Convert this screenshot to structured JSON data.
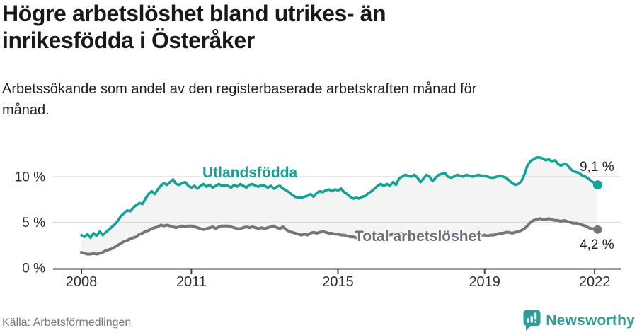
{
  "header": {
    "title_line1": "Högre arbetslöshet bland utrikes- än",
    "title_line2": "inrikesfödda i Österåker",
    "subtitle_line1": "Arbetssökande som andel av den registerbaserade arbetskraften månad för",
    "subtitle_line2": "månad."
  },
  "chart_data": {
    "type": "line",
    "title": "Högre arbetslöshet bland utrikes- än inrikesfödda i Österåker",
    "subtitle": "Arbetssökande som andel av den registerbaserade arbetskraften månad för månad.",
    "x_unit": "month",
    "x_start": "2008-01",
    "x_end": "2022-02",
    "x_tick_years": [
      2008,
      2011,
      2015,
      2019,
      2022
    ],
    "x_tick_labels": [
      "2008",
      "2011",
      "2015",
      "2019",
      "2022"
    ],
    "y_tick_values": [
      0,
      5,
      10
    ],
    "y_tick_labels": [
      "0 %",
      "5 %",
      "10 %"
    ],
    "y_grid_values": [
      5,
      10
    ],
    "ylim": [
      0,
      13.2
    ],
    "grid": "horizontal",
    "legend_position": "inline-labels",
    "band_fill": "#f4f4f4",
    "axis_color": "#3f3f3f",
    "grid_color": "#dadada",
    "series": [
      {
        "name": "Utlandsfödda",
        "color": "#14a294",
        "end_label": "9,1 %",
        "end_value": 9.1,
        "values": [
          3.6,
          3.4,
          3.7,
          3.3,
          3.8,
          3.5,
          4.0,
          3.6,
          3.9,
          4.2,
          4.5,
          4.8,
          5.2,
          5.7,
          6.0,
          6.3,
          6.2,
          6.6,
          6.9,
          7.1,
          7.0,
          7.6,
          8.1,
          8.4,
          8.1,
          8.6,
          9.0,
          9.3,
          9.1,
          9.4,
          9.7,
          9.2,
          9.1,
          9.3,
          9.4,
          9.0,
          8.8,
          9.0,
          8.7,
          9.0,
          9.2,
          8.9,
          9.1,
          8.8,
          9.0,
          9.2,
          9.0,
          9.1,
          9.0,
          8.8,
          9.1,
          8.9,
          9.2,
          9.0,
          8.8,
          9.1,
          9.2,
          9.0,
          8.9,
          9.1,
          9.0,
          8.8,
          9.0,
          8.7,
          8.9,
          9.0,
          8.7,
          8.5,
          8.3,
          8.0,
          7.8,
          7.7,
          7.7,
          7.8,
          7.9,
          8.1,
          7.8,
          8.2,
          8.4,
          8.3,
          8.5,
          8.6,
          8.4,
          8.6,
          8.5,
          8.7,
          8.3,
          8.1,
          7.8,
          7.6,
          7.7,
          7.6,
          7.8,
          7.9,
          8.2,
          8.4,
          8.7,
          9.0,
          9.2,
          9.0,
          9.2,
          9.0,
          9.4,
          9.1,
          9.8,
          10.0,
          10.2,
          10.1,
          10.0,
          10.2,
          9.9,
          9.4,
          9.8,
          10.2,
          10.0,
          9.5,
          9.9,
          10.2,
          10.3,
          10.4,
          10.0,
          9.9,
          10.0,
          10.2,
          10.1,
          10.0,
          10.2,
          10.1,
          10.0,
          10.1,
          10.2,
          10.1,
          10.1,
          10.0,
          9.9,
          9.9,
          10.0,
          10.1,
          10.0,
          9.9,
          9.6,
          9.3,
          9.1,
          9.2,
          9.5,
          10.2,
          11.2,
          11.7,
          11.9,
          12.1,
          12.1,
          12.0,
          11.8,
          11.9,
          11.7,
          11.8,
          11.4,
          11.2,
          11.4,
          11.3,
          10.9,
          10.6,
          10.5,
          10.4,
          10.1,
          10.0,
          9.8,
          9.5,
          9.3,
          9.1
        ]
      },
      {
        "name": "Total arbetslöshet",
        "color": "#75757b",
        "end_label": "4,2 %",
        "end_value": 4.2,
        "values": [
          1.7,
          1.6,
          1.5,
          1.5,
          1.6,
          1.5,
          1.6,
          1.7,
          1.9,
          2.0,
          2.1,
          2.3,
          2.5,
          2.7,
          2.9,
          3.0,
          3.2,
          3.3,
          3.4,
          3.7,
          3.8,
          4.0,
          4.1,
          4.3,
          4.4,
          4.5,
          4.7,
          4.6,
          4.7,
          4.6,
          4.5,
          4.4,
          4.5,
          4.6,
          4.5,
          4.6,
          4.6,
          4.5,
          4.4,
          4.3,
          4.2,
          4.3,
          4.4,
          4.5,
          4.3,
          4.5,
          4.6,
          4.6,
          4.6,
          4.5,
          4.4,
          4.3,
          4.3,
          4.4,
          4.5,
          4.4,
          4.5,
          4.4,
          4.3,
          4.4,
          4.3,
          4.4,
          4.5,
          4.6,
          4.4,
          4.3,
          4.5,
          4.2,
          4.0,
          3.9,
          3.8,
          3.7,
          3.6,
          3.7,
          3.6,
          3.8,
          3.9,
          3.8,
          3.9,
          4.0,
          3.9,
          3.8,
          3.8,
          3.7,
          3.7,
          3.6,
          3.6,
          3.5,
          3.4,
          3.4,
          3.3,
          3.3,
          3.4,
          3.5,
          3.5,
          3.6,
          3.6,
          3.7,
          3.6,
          3.6,
          3.7,
          3.6,
          3.7,
          3.6,
          3.7,
          3.8,
          3.7,
          3.7,
          3.7,
          3.6,
          3.6,
          3.5,
          3.6,
          3.7,
          3.6,
          3.5,
          3.6,
          3.7,
          3.7,
          3.8,
          3.7,
          3.6,
          3.6,
          3.5,
          3.5,
          3.6,
          3.6,
          3.5,
          3.5,
          3.6,
          3.5,
          3.6,
          3.6,
          3.5,
          3.6,
          3.6,
          3.7,
          3.8,
          3.8,
          3.9,
          3.9,
          3.8,
          3.9,
          4.0,
          4.1,
          4.3,
          4.6,
          5.0,
          5.2,
          5.3,
          5.4,
          5.3,
          5.3,
          5.4,
          5.3,
          5.2,
          5.2,
          5.1,
          5.2,
          5.1,
          5.0,
          4.9,
          4.9,
          4.8,
          4.7,
          4.6,
          4.4,
          4.3,
          4.3,
          4.2
        ]
      }
    ]
  },
  "footer": {
    "source": "Källa: Arbetsförmedlingen",
    "brand": "Newsworthy"
  }
}
